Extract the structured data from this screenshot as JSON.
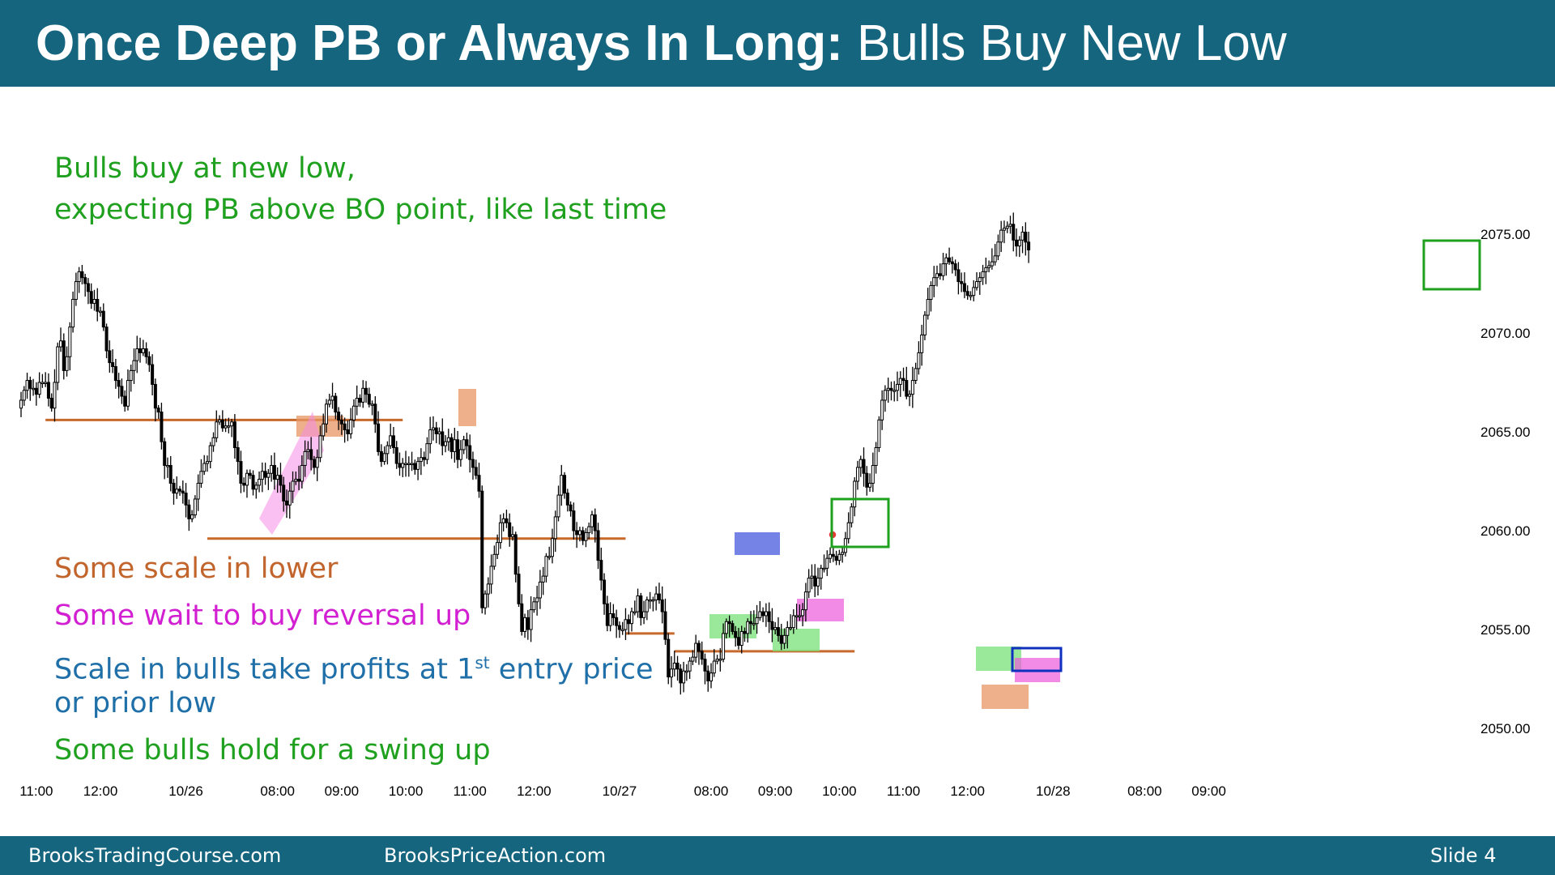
{
  "slide": {
    "title_bold": "Once Deep PB or Always In Long:",
    "title_light": "Bulls Buy New Low",
    "footer_left": "BrooksTradingCourse.com",
    "footer_center": "BrooksPriceAction.com",
    "slide_number": "Slide 4"
  },
  "notes": {
    "bulls_buy_1": "Bulls buy at new low,",
    "bulls_buy_2": "expecting PB above BO point, like last time",
    "scale_in": "Some scale in lower",
    "wait": "Some wait to buy reversal up",
    "profits_1": "Scale in bulls take profits at 1",
    "profits_sup": "st",
    "profits_2": " entry price",
    "profits_3": "or prior low",
    "hold": "Some bulls hold for a swing up"
  },
  "colors": {
    "header": "#16657f",
    "green_text": "#1fa01f",
    "brown_text": "#c2652d",
    "magenta_text": "#d21fd2",
    "blue_text": "#1f6fa8",
    "level_line": "#c8692c",
    "bull_body": "#ffffff",
    "bear_body": "#000000"
  },
  "chart_data": {
    "type": "candlestick",
    "y_axis": {
      "min": 2048.5,
      "max": 2078.0,
      "ticks": [
        2075,
        2070,
        2065,
        2060,
        2055,
        2050
      ],
      "tick_labels": [
        "2075.00",
        "2070.00",
        "2065.00",
        "2060.00",
        "2055.00",
        "2050.00"
      ]
    },
    "x_axis": {
      "labels": [
        {
          "bar": 5,
          "text": "11:00"
        },
        {
          "bar": 26,
          "text": "12:00"
        },
        {
          "bar": 54,
          "text": "10/26"
        },
        {
          "bar": 84,
          "text": "08:00"
        },
        {
          "bar": 105,
          "text": "09:00"
        },
        {
          "bar": 126,
          "text": "10:00"
        },
        {
          "bar": 147,
          "text": "11:00"
        },
        {
          "bar": 168,
          "text": "12:00"
        },
        {
          "bar": 196,
          "text": "10/27"
        },
        {
          "bar": 226,
          "text": "08:00"
        },
        {
          "bar": 247,
          "text": "09:00"
        },
        {
          "bar": 268,
          "text": "10:00"
        },
        {
          "bar": 289,
          "text": "11:00"
        },
        {
          "bar": 310,
          "text": "12:00"
        },
        {
          "bar": 338,
          "text": "10/28"
        },
        {
          "bar": 368,
          "text": "08:00"
        },
        {
          "bar": 389,
          "text": "09:00"
        }
      ]
    },
    "closes": [
      2066.6,
      2067.1,
      2067.6,
      2067.2,
      2067.2,
      2066.9,
      2067.5,
      2067.5,
      2067.5,
      2066.7,
      2066.2,
      2067.5,
      2069.3,
      2069.6,
      2068.1,
      2068.8,
      2070.3,
      2071.7,
      2072.6,
      2073.1,
      2072.8,
      2072.5,
      2072.1,
      2071.5,
      2071.7,
      2071.1,
      2071.1,
      2070.3,
      2069.1,
      2068.5,
      2068.3,
      2067.6,
      2067.3,
      2066.8,
      2066.3,
      2067.6,
      2068.1,
      2068.6,
      2069.2,
      2069.0,
      2069.2,
      2068.8,
      2068.4,
      2067.4,
      2066.2,
      2066.0,
      2064.5,
      2063.3,
      2063.3,
      2062.4,
      2061.9,
      2062.1,
      2062.0,
      2061.9,
      2061.3,
      2060.6,
      2060.8,
      2061.6,
      2062.4,
      2063.0,
      2063.4,
      2063.5,
      2064.3,
      2064.7,
      2065.5,
      2065.6,
      2065.2,
      2065.3,
      2065.3,
      2065.5,
      2064.2,
      2063.5,
      2062.4,
      2062.3,
      2062.9,
      2062.8,
      2062.1,
      2062.3,
      2062.6,
      2063.0,
      2062.7,
      2062.9,
      2063.3,
      2062.6,
      2062.8,
      2062.3,
      2061.5,
      2061.3,
      2062.0,
      2062.5,
      2062.6,
      2062.5,
      2063.3,
      2064.0,
      2064.1,
      2063.6,
      2063.2,
      2063.7,
      2064.8,
      2065.4,
      2066.4,
      2066.6,
      2066.8,
      2066.0,
      2065.6,
      2065.4,
      2065.1,
      2064.9,
      2065.6,
      2066.3,
      2066.7,
      2066.5,
      2067.2,
      2066.9,
      2066.4,
      2066.4,
      2065.4,
      2064.0,
      2063.5,
      2063.9,
      2064.3,
      2064.8,
      2064.2,
      2063.4,
      2063.2,
      2063.4,
      2063.4,
      2063.4,
      2063.4,
      2063.1,
      2063.5,
      2063.7,
      2063.6,
      2064.4,
      2065.1,
      2065.2,
      2064.9,
      2065.0,
      2064.3,
      2064.5,
      2064.7,
      2064.0,
      2064.6,
      2063.6,
      2064.1,
      2064.6,
      2064.3,
      2063.6,
      2063.2,
      2062.8,
      2062.0,
      2056.1,
      2056.8,
      2057.3,
      2058.2,
      2058.8,
      2059.4,
      2060.4,
      2060.6,
      2060.4,
      2059.7,
      2059.8,
      2057.8,
      2056.3,
      2054.9,
      2055.6,
      2055.0,
      2056.0,
      2056.4,
      2056.6,
      2057.4,
      2057.7,
      2058.7,
      2058.7,
      2059.6,
      2060.7,
      2061.8,
      2062.8,
      2061.9,
      2061.3,
      2061.0,
      2060.0,
      2059.8,
      2060.0,
      2059.5,
      2059.9,
      2060.2,
      2060.8,
      2060.0,
      2058.5,
      2057.5,
      2056.3,
      2055.2,
      2055.8,
      2055.6,
      2055.2,
      2055.0,
      2055.0,
      2055.5,
      2055.3,
      2055.9,
      2055.9,
      2056.7,
      2055.6,
      2055.9,
      2056.5,
      2056.5,
      2056.5,
      2056.8,
      2056.5,
      2055.9,
      2054.5,
      2052.6,
      2053.0,
      2053.3,
      2053.0,
      2052.3,
      2052.9,
      2052.9,
      2053.4,
      2053.6,
      2054.3,
      2053.9,
      2053.5,
      2052.9,
      2052.4,
      2052.8,
      2053.4,
      2053.5,
      2053.5,
      2054.8,
      2055.4,
      2055.3,
      2054.9,
      2054.6,
      2054.2,
      2054.9,
      2054.8,
      2055.4,
      2055.3,
      2055.3,
      2055.6,
      2055.9,
      2055.7,
      2055.9,
      2055.4,
      2055.0,
      2055.1,
      2054.7,
      2054.3,
      2054.7,
      2055.1,
      2055.1,
      2055.7,
      2055.7,
      2055.7,
      2056.0,
      2056.9,
      2057.6,
      2057.7,
      2057.2,
      2057.6,
      2058.1,
      2058.1,
      2058.6,
      2058.8,
      2058.7,
      2058.5,
      2058.8,
      2058.9,
      2059.6,
      2060.4,
      2061.2,
      2062.5,
      2063.2,
      2063.6,
      2062.9,
      2062.2,
      2062.4,
      2063.3,
      2064.2,
      2065.6,
      2066.6,
      2067.1,
      2067.2,
      2067.1,
      2067.1,
      2067.4,
      2067.7,
      2067.6,
      2066.8,
      2066.9,
      2067.6,
      2068.2,
      2069.0,
      2069.9,
      2070.9,
      2071.7,
      2072.4,
      2072.8,
      2073.0,
      2072.9,
      2073.5,
      2073.8,
      2073.6,
      2073.5,
      2073.2,
      2072.6,
      2072.5,
      2072.1,
      2071.9,
      2071.9,
      2072.3,
      2072.6,
      2072.8,
      2073.1,
      2073.3,
      2073.4,
      2073.6,
      2073.9,
      2074.6,
      2075.2,
      2075.3,
      2075.4,
      2075.5,
      2074.7,
      2074.4,
      2074.7,
      2075.1,
      2074.6,
      2074.2
    ],
    "levels": [
      {
        "price": 2065.6,
        "from_bar": 8,
        "to_bar": 125
      },
      {
        "price": 2059.6,
        "from_bar": 61,
        "to_bar": 198
      },
      {
        "price": 2054.8,
        "from_bar": 198,
        "to_bar": 214
      },
      {
        "price": 2053.9,
        "from_bar": 214,
        "to_bar": 273
      }
    ]
  }
}
